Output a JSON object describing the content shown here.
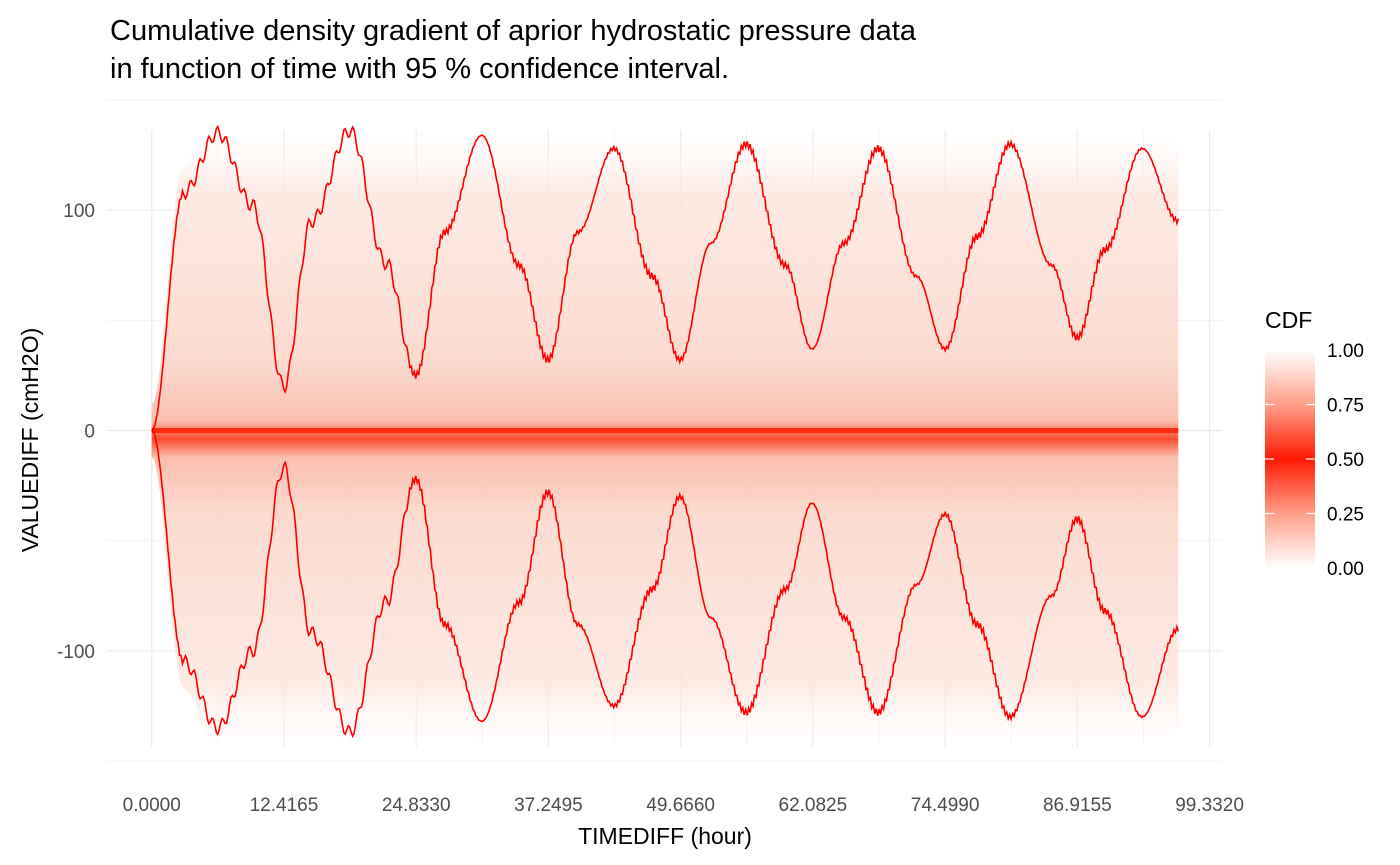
{
  "chart_data": {
    "type": "area",
    "title_lines": [
      "Cumulative density gradient of aprior hydrostatic pressure data",
      "in function of time with 95 % confidence interval."
    ],
    "xlabel": "TIMEDIFF (hour)",
    "ylabel": "VALUEDIFF (cmH2O)",
    "xlim": [
      -4.2,
      100.5
    ],
    "ylim": [
      -155,
      150
    ],
    "x_ticks": [
      0.0,
      12.4165,
      24.833,
      37.2495,
      49.666,
      62.0825,
      74.499,
      86.9155,
      99.332
    ],
    "x_tick_labels": [
      "0.0000",
      "12.4165",
      "24.8330",
      "37.2495",
      "49.6660",
      "62.0825",
      "74.4990",
      "86.9155",
      "99.3320"
    ],
    "y_ticks": [
      -100,
      0,
      100
    ],
    "y_tick_labels": [
      "-100",
      "0",
      "100"
    ],
    "grid": true,
    "upper_band": {
      "name": "upper 95% bound",
      "color": "#ff0000",
      "x": [
        0,
        3,
        6.2,
        9.5,
        12.4,
        15,
        18.6,
        22,
        24.8,
        27.5,
        31,
        34.5,
        37.2,
        40,
        43.4,
        47,
        49.6,
        52.5,
        55.8,
        59.5,
        62,
        65,
        68.2,
        71.8,
        74.5,
        77.5,
        80.6,
        84.5,
        86.9,
        89.5,
        93,
        96.4
      ],
      "y": [
        0,
        108,
        135,
        102,
        20,
        95,
        136,
        76,
        25,
        90,
        134,
        75,
        32,
        90,
        128,
        70,
        32,
        85,
        130,
        75,
        37,
        85,
        128,
        70,
        37,
        88,
        130,
        75,
        42,
        82,
        128,
        95
      ]
    },
    "lower_band": {
      "name": "lower 95% bound",
      "color": "#ff0000",
      "x": [
        0,
        3,
        6.2,
        9.5,
        12.4,
        15,
        18.6,
        22,
        24.8,
        27.5,
        31,
        34.5,
        37.2,
        40,
        43.4,
        47,
        49.6,
        52.5,
        55.8,
        59.5,
        62,
        65,
        68.2,
        71.8,
        74.5,
        77.5,
        80.6,
        84.5,
        86.9,
        89.5,
        93,
        96.4
      ],
      "y": [
        0,
        -105,
        -135,
        -100,
        -17,
        -92,
        -137,
        -78,
        -22,
        -88,
        -132,
        -78,
        -28,
        -88,
        -125,
        -72,
        -30,
        -85,
        -128,
        -72,
        -33,
        -85,
        -128,
        -70,
        -38,
        -88,
        -130,
        -75,
        -40,
        -82,
        -130,
        -90
      ]
    },
    "center_line": {
      "name": "median",
      "x": [
        0,
        96.4
      ],
      "y": [
        0,
        0
      ]
    },
    "legend": {
      "title": "CDF",
      "position": "right",
      "breaks": [
        1.0,
        0.75,
        0.5,
        0.25,
        0.0
      ],
      "labels": [
        "1.00",
        "0.75",
        "0.50",
        "0.25",
        "0.00"
      ],
      "colors": [
        "#ffffff",
        "#ff9f8a",
        "#ff1a00",
        "#ff9f8a",
        "#ffffff"
      ]
    },
    "colors": {
      "band_line": "#ff0000",
      "gradient_core": "#ff1a00",
      "gradient_fill": "#fcd9cc",
      "grid": "#ebebeb"
    }
  }
}
